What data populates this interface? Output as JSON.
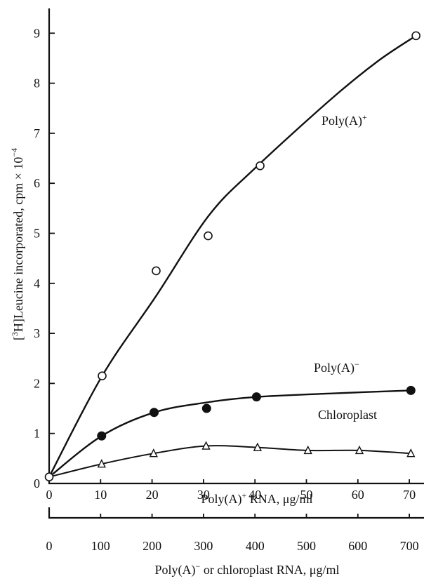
{
  "chart_data": {
    "type": "scatter",
    "ylabel_parts": {
      "pre": "[",
      "sup1": "3",
      "mid": "H]Leucine incorporated, cpm × 10",
      "sup2": "−4"
    },
    "xlabel_top_parts": {
      "pre": "Poly(A)",
      "sup": "+",
      "post": " RNA, μg/ml"
    },
    "xlabel_bottom_parts": {
      "pre": "Poly(A)",
      "sup": "−",
      "post": " or chloroplast RNA, μg/ml"
    },
    "ylim": [
      0,
      9.5
    ],
    "y_ticks": [
      0,
      1,
      2,
      3,
      4,
      5,
      6,
      7,
      8,
      9
    ],
    "x_top_lim": [
      0,
      75
    ],
    "x_top_ticks": [
      0,
      10,
      20,
      30,
      40,
      50,
      60,
      70
    ],
    "x_bottom_lim": [
      0,
      750
    ],
    "x_bottom_ticks": [
      0,
      100,
      200,
      300,
      400,
      500,
      600,
      700
    ],
    "grid": false,
    "series": [
      {
        "label_parts": {
          "pre": "Poly(A)",
          "sup": "+"
        },
        "x_axis": "top",
        "marker": "open-circle",
        "points": [
          {
            "x": 0,
            "y": 0.13
          },
          {
            "x": 10.3,
            "y": 2.15
          },
          {
            "x": 20.8,
            "y": 4.25
          },
          {
            "x": 30.9,
            "y": 4.95
          },
          {
            "x": 41.0,
            "y": 6.35
          },
          {
            "x": 71.3,
            "y": 8.95
          }
        ],
        "curve": [
          {
            "x": 0,
            "y": 0.13
          },
          {
            "x": 10.3,
            "y": 2.15
          },
          {
            "x": 20.8,
            "y": 3.75
          },
          {
            "x": 31,
            "y": 5.35
          },
          {
            "x": 40,
            "y": 6.3
          },
          {
            "x": 55,
            "y": 7.7
          },
          {
            "x": 64,
            "y": 8.45
          },
          {
            "x": 71.3,
            "y": 8.95
          }
        ]
      },
      {
        "label_parts": {
          "pre": "Poly(A)",
          "sup": "−"
        },
        "x_axis": "bottom",
        "marker": "filled-circle",
        "points": [
          {
            "x": 0,
            "y": 0.13
          },
          {
            "x": 102,
            "y": 0.95
          },
          {
            "x": 204,
            "y": 1.42
          },
          {
            "x": 306,
            "y": 1.5
          },
          {
            "x": 403,
            "y": 1.73
          },
          {
            "x": 703,
            "y": 1.86
          }
        ],
        "curve": [
          {
            "x": 0,
            "y": 0.13
          },
          {
            "x": 102,
            "y": 0.95
          },
          {
            "x": 204,
            "y": 1.42
          },
          {
            "x": 306,
            "y": 1.62
          },
          {
            "x": 403,
            "y": 1.73
          },
          {
            "x": 550,
            "y": 1.8
          },
          {
            "x": 703,
            "y": 1.86
          }
        ]
      },
      {
        "label_parts": {
          "pre": "Chloroplast",
          "sup": ""
        },
        "x_axis": "bottom",
        "marker": "open-triangle",
        "points": [
          {
            "x": 0,
            "y": 0.13
          },
          {
            "x": 102,
            "y": 0.39
          },
          {
            "x": 203,
            "y": 0.6
          },
          {
            "x": 305,
            "y": 0.75
          },
          {
            "x": 405,
            "y": 0.72
          },
          {
            "x": 503,
            "y": 0.66
          },
          {
            "x": 603,
            "y": 0.66
          },
          {
            "x": 703,
            "y": 0.6
          }
        ],
        "curve": [
          {
            "x": 0,
            "y": 0.13
          },
          {
            "x": 102,
            "y": 0.39
          },
          {
            "x": 203,
            "y": 0.6
          },
          {
            "x": 305,
            "y": 0.75
          },
          {
            "x": 405,
            "y": 0.72
          },
          {
            "x": 503,
            "y": 0.66
          },
          {
            "x": 603,
            "y": 0.66
          },
          {
            "x": 703,
            "y": 0.6
          }
        ]
      }
    ]
  }
}
